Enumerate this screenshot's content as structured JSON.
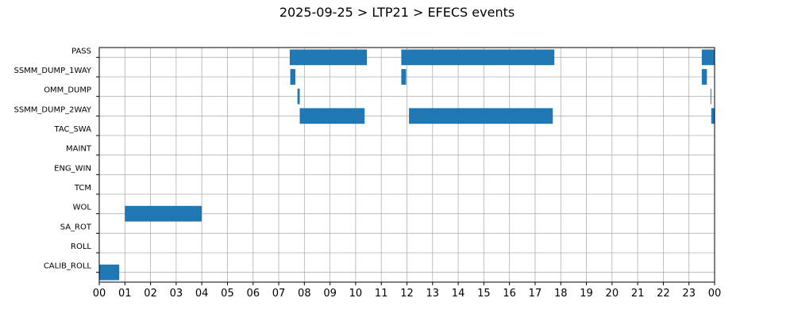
{
  "chart_data": {
    "type": "bar",
    "orientation": "horizontal-timeline",
    "title": "2025-09-25 > LTP21 > EFECS events",
    "xlabel": "",
    "ylabel": "",
    "xlim": [
      0,
      24
    ],
    "x_ticks": [
      "00",
      "01",
      "02",
      "03",
      "04",
      "05",
      "06",
      "07",
      "08",
      "09",
      "10",
      "11",
      "12",
      "13",
      "14",
      "15",
      "16",
      "17",
      "18",
      "19",
      "20",
      "21",
      "22",
      "23",
      "00"
    ],
    "grid": true,
    "bar_color": "#1f77b4",
    "categories": [
      "PASS",
      "SSMM_DUMP_1WAY",
      "OMM_DUMP",
      "SSMM_DUMP_2WAY",
      "TAC_SWA",
      "MAINT",
      "ENG_WIN",
      "TCM",
      "WOL",
      "SA_ROT",
      "ROLL",
      "CALIB_ROLL"
    ],
    "events": [
      {
        "category": "PASS",
        "start": 7.43,
        "end": 10.44
      },
      {
        "category": "PASS",
        "start": 11.78,
        "end": 17.75
      },
      {
        "category": "PASS",
        "start": 23.5,
        "end": 24.0
      },
      {
        "category": "SSMM_DUMP_1WAY",
        "start": 7.45,
        "end": 7.65
      },
      {
        "category": "SSMM_DUMP_1WAY",
        "start": 11.78,
        "end": 11.97
      },
      {
        "category": "SSMM_DUMP_1WAY",
        "start": 23.5,
        "end": 23.7
      },
      {
        "category": "OMM_DUMP",
        "start": 7.73,
        "end": 7.82
      },
      {
        "category": "OMM_DUMP",
        "start": 23.84,
        "end": 23.87
      },
      {
        "category": "SSMM_DUMP_2WAY",
        "start": 7.82,
        "end": 10.35
      },
      {
        "category": "SSMM_DUMP_2WAY",
        "start": 12.08,
        "end": 17.69
      },
      {
        "category": "SSMM_DUMP_2WAY",
        "start": 23.87,
        "end": 24.0
      },
      {
        "category": "WOL",
        "start": 1.0,
        "end": 4.0
      },
      {
        "category": "CALIB_ROLL",
        "start": 0.0,
        "end": 0.78
      }
    ]
  }
}
